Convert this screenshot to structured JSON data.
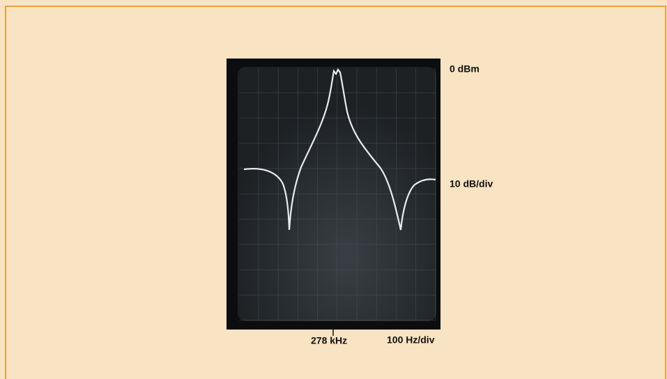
{
  "figure": {
    "reference_level": "0 dBm",
    "vertical_scale": "10 dB/div",
    "center_frequency": "278 kHz",
    "horizontal_scale": "100 Hz/div"
  }
}
